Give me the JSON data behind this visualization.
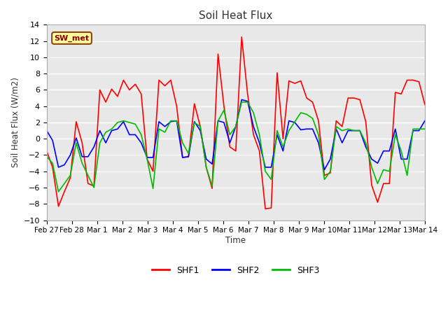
{
  "title": "Soil Heat Flux",
  "ylabel": "Soil Heat Flux (W/m2)",
  "xlabel": "Time",
  "ylim": [
    -10,
    14
  ],
  "yticks": [
    -10,
    -8,
    -6,
    -4,
    -2,
    0,
    2,
    4,
    6,
    8,
    10,
    12,
    14
  ],
  "xtick_labels": [
    "Feb 27",
    "Feb 28",
    "Mar 1",
    "Mar 2",
    "Mar 3",
    "Mar 4",
    "Mar 5",
    "Mar 6",
    "Mar 7",
    "Mar 8",
    "Mar 9",
    "Mar 10",
    "Mar 11",
    "Mar 12",
    "Mar 13",
    "Mar 14"
  ],
  "annotation_text": "SW_met",
  "bg_color": "#e8e8e8",
  "fig_bg_color": "#ffffff",
  "shf1_color": "#ff0000",
  "shf2_color": "#0000ff",
  "shf3_color": "#00bb00",
  "line_width": 1.2,
  "grid_color": "#ffffff",
  "spine_color": "#aaaaaa",
  "shf1": [
    -1.5,
    -3.5,
    -8.3,
    -6.5,
    -4.8,
    2.1,
    -0.5,
    -5.5,
    -5.8,
    6.0,
    4.5,
    6.1,
    5.2,
    7.2,
    6.0,
    6.7,
    5.5,
    -2.5,
    -4.0,
    7.2,
    6.5,
    7.2,
    4.0,
    -2.3,
    -2.2,
    4.3,
    1.5,
    -3.5,
    -6.1,
    10.4,
    4.0,
    -1.0,
    -1.5,
    12.5,
    5.5,
    0.5,
    -1.5,
    -8.6,
    -8.5,
    8.1,
    0.0,
    7.1,
    6.8,
    7.1,
    5.0,
    4.5,
    2.2,
    -4.5,
    -4.2,
    2.2,
    1.5,
    5.0,
    5.0,
    4.8,
    2.1,
    -5.7,
    -7.8,
    -5.5,
    -5.5,
    5.7,
    5.5,
    7.2,
    7.2,
    7.0,
    4.2
  ],
  "shf2": [
    1.0,
    -0.2,
    -3.5,
    -3.2,
    -2.0,
    0.1,
    -2.2,
    -2.2,
    -1.0,
    1.0,
    -0.5,
    1.0,
    1.2,
    2.1,
    0.5,
    0.5,
    -0.5,
    -2.3,
    -2.3,
    2.1,
    1.5,
    2.1,
    2.2,
    -2.3,
    -2.2,
    2.1,
    1.0,
    -2.5,
    -3.1,
    2.2,
    2.0,
    -0.5,
    1.5,
    4.8,
    4.6,
    1.5,
    -0.5,
    -3.5,
    -3.5,
    0.5,
    -1.5,
    2.2,
    2.0,
    1.1,
    1.2,
    1.2,
    -0.5,
    -3.8,
    -2.5,
    1.2,
    -0.5,
    1.0,
    1.0,
    1.0,
    -1.0,
    -2.5,
    -3.0,
    -1.5,
    -1.5,
    1.2,
    -2.5,
    -2.5,
    1.0,
    1.0,
    2.2
  ],
  "shf3": [
    -2.2,
    -3.0,
    -6.5,
    -5.5,
    -4.5,
    -0.5,
    -3.0,
    -4.5,
    -6.0,
    -0.5,
    0.8,
    1.2,
    2.0,
    2.2,
    2.0,
    1.8,
    0.5,
    -2.5,
    -6.1,
    1.2,
    0.8,
    2.2,
    2.2,
    -0.5,
    -1.8,
    2.0,
    1.5,
    -3.5,
    -5.8,
    2.2,
    3.5,
    0.5,
    1.5,
    4.5,
    4.5,
    3.2,
    0.5,
    -4.0,
    -5.0,
    1.0,
    -1.0,
    1.0,
    2.1,
    3.2,
    3.0,
    2.5,
    0.5,
    -5.0,
    -4.0,
    1.5,
    1.0,
    1.2,
    1.0,
    1.0,
    -0.5,
    -3.5,
    -5.5,
    -3.8,
    -4.0,
    0.5,
    -1.5,
    -4.5,
    1.2,
    1.2,
    1.2
  ]
}
